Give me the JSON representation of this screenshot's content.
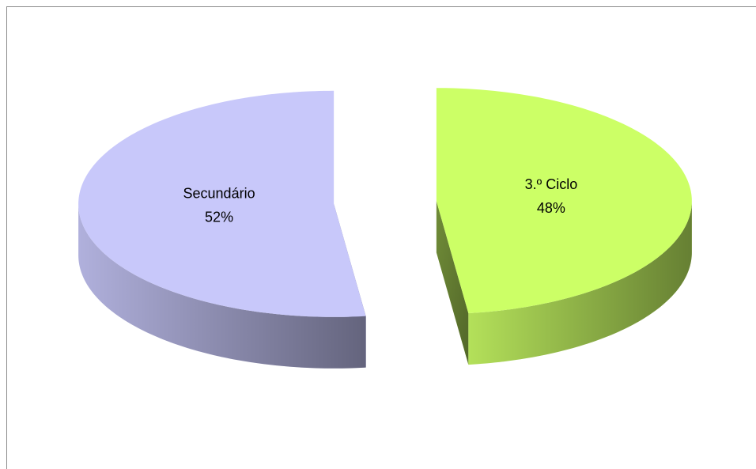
{
  "chart_data": {
    "type": "pie3d",
    "categories": [
      "3.º Ciclo",
      "Secundário"
    ],
    "values": [
      48,
      52
    ],
    "value_labels": [
      "48%",
      "52%"
    ],
    "colors": [
      "#ccff66",
      "#c8c8fa"
    ]
  }
}
